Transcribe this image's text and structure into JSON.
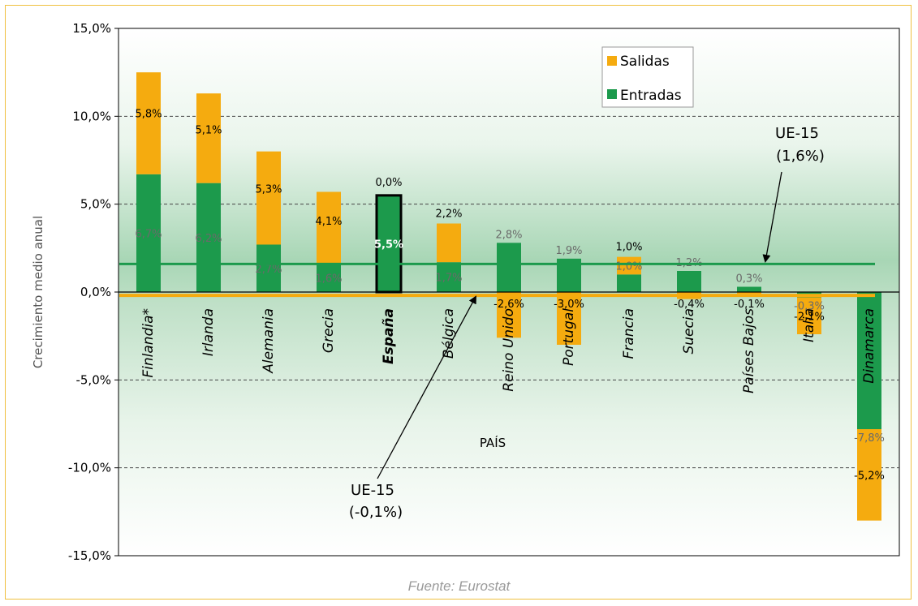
{
  "source_note": "Fuente: Eurostat",
  "chart_data": {
    "type": "bar",
    "stacked": true,
    "ylabel": "Crecimiento medio anual",
    "xlabel": "PAÍS",
    "ylim": [
      -15,
      15
    ],
    "y_ticks": [
      15,
      10,
      5,
      0,
      -5,
      -10,
      -15
    ],
    "y_tick_labels": [
      "15,0%",
      "10,0%",
      "5,0%",
      "0,0%",
      "-5,0%",
      "-10,0%",
      "-15,0%"
    ],
    "grid": true,
    "legend_position": "top-right",
    "categories": [
      "Finlandia*",
      "Irlanda",
      "Alemania",
      "Grecia",
      "España",
      "Bélgica",
      "Reino Unido",
      "Portugal",
      "Francia",
      "Suecia",
      "Países Bajos",
      "Italia",
      "Dinamarca"
    ],
    "highlight_category": "España",
    "series": [
      {
        "name": "Entradas",
        "color": "#1c9a4c",
        "values": [
          6.7,
          6.2,
          2.7,
          1.6,
          5.5,
          1.7,
          2.8,
          1.9,
          1.0,
          1.2,
          0.3,
          -0.3,
          -7.8
        ],
        "labels": [
          "6,7%",
          "6,2%",
          "2,7%",
          "1,6%",
          "5,5%",
          "1,7%",
          "2,8%",
          "1,9%",
          "1,0%",
          "1,2%",
          "0,3%",
          "-0,3%",
          "-7,8%"
        ]
      },
      {
        "name": "Salidas",
        "color": "#f5ab0f",
        "values": [
          5.8,
          5.1,
          5.3,
          4.1,
          0.0,
          2.2,
          -2.6,
          -3.0,
          1.0,
          -0.4,
          -0.1,
          -2.1,
          -5.2
        ],
        "labels": [
          "5,8%",
          "5,1%",
          "5,3%",
          "4,1%",
          "0,0%",
          "2,2%",
          "-2,6%",
          "-3,0%",
          "1,0%",
          "-0,4%",
          "-0,1%",
          "-2,1%",
          "-5,2%"
        ]
      }
    ],
    "reference_lines": [
      {
        "label_line1": "UE-15",
        "label_line2": "(1,6%)",
        "value": 1.6,
        "color": "#1c9a4c"
      },
      {
        "label_line1": "UE-15",
        "label_line2": "(-0,1%)",
        "value": -0.1,
        "color": "#f5ab0f"
      }
    ]
  }
}
